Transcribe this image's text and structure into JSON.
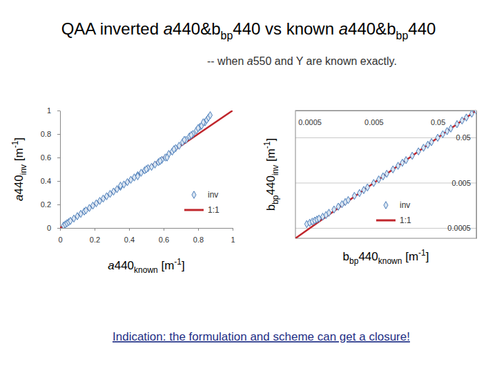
{
  "title": "QAA inverted a440&bbp440 vs known a440&bbp440",
  "subtitle": "-- when a550 and Y are known exactly.",
  "note": "Indication: the formulation and scheme can get a closure!",
  "chart_data": [
    {
      "type": "scatter",
      "x_label": "a440known [m-1]",
      "y_label": "a440inv [m-1]",
      "xlim": [
        0,
        1
      ],
      "ylim": [
        0,
        1
      ],
      "xticks": [
        0,
        0.2,
        0.4,
        0.6,
        0.8,
        1
      ],
      "yticks": [
        0,
        0.2,
        0.4,
        0.6,
        0.8,
        1
      ],
      "grid": false,
      "legend": "lower right",
      "series": [
        {
          "name": "inv",
          "type": "scatter",
          "marker": "diamond",
          "color": "#4a7ebb",
          "x": [
            0.02,
            0.03,
            0.04,
            0.05,
            0.06,
            0.08,
            0.1,
            0.12,
            0.14,
            0.15,
            0.17,
            0.19,
            0.21,
            0.23,
            0.25,
            0.27,
            0.29,
            0.31,
            0.33,
            0.35,
            0.37,
            0.39,
            0.41,
            0.43,
            0.45,
            0.47,
            0.49,
            0.51,
            0.53,
            0.55,
            0.57,
            0.59,
            0.61,
            0.63,
            0.65,
            0.67,
            0.69,
            0.71,
            0.73,
            0.75,
            0.77,
            0.79,
            0.81,
            0.82,
            0.84,
            0.85,
            0.86,
            0.87,
            0.58,
            0.62,
            0.66,
            0.72,
            0.76,
            0.8,
            0.83,
            0.35,
            0.45,
            0.5
          ],
          "values": [
            0.02,
            0.03,
            0.04,
            0.05,
            0.06,
            0.08,
            0.1,
            0.12,
            0.14,
            0.15,
            0.17,
            0.19,
            0.21,
            0.23,
            0.25,
            0.27,
            0.29,
            0.31,
            0.33,
            0.35,
            0.37,
            0.39,
            0.41,
            0.43,
            0.45,
            0.47,
            0.49,
            0.51,
            0.52,
            0.54,
            0.56,
            0.58,
            0.6,
            0.63,
            0.65,
            0.68,
            0.7,
            0.73,
            0.75,
            0.78,
            0.8,
            0.83,
            0.86,
            0.87,
            0.9,
            0.92,
            0.94,
            0.96,
            0.57,
            0.6,
            0.67,
            0.75,
            0.79,
            0.85,
            0.9,
            0.36,
            0.44,
            0.5
          ]
        },
        {
          "name": "1:1",
          "type": "line",
          "line_style": "solid",
          "color": "#c0262c",
          "x": [
            0,
            1
          ],
          "values": [
            0,
            1
          ]
        }
      ]
    },
    {
      "type": "scatter",
      "x_label": "bbp440known [m-1]",
      "y_label": "bbp440inv [m-1]",
      "log": true,
      "xlim": [
        0.0003,
        0.2
      ],
      "ylim": [
        0.0003,
        0.2
      ],
      "xticks": [
        0.0005,
        0.005,
        0.05
      ],
      "yticks": [
        0.0005,
        0.005,
        0.05
      ],
      "grid": true,
      "legend": "lower right",
      "series": [
        {
          "name": "inv",
          "type": "scatter",
          "marker": "diamond",
          "color": "#4a7ebb",
          "x": [
            0.00045,
            0.0005,
            0.00055,
            0.0006,
            0.00065,
            0.0007,
            0.0008,
            0.0009,
            0.001,
            0.0012,
            0.0014,
            0.0016,
            0.0018,
            0.002,
            0.0025,
            0.003,
            0.0035,
            0.004,
            0.005,
            0.006,
            0.007,
            0.008,
            0.01,
            0.012,
            0.014,
            0.016,
            0.02,
            0.025,
            0.03,
            0.035,
            0.04,
            0.05,
            0.06,
            0.07,
            0.08,
            0.1,
            0.12,
            0.14,
            0.17,
            0.2
          ],
          "values": [
            0.00062,
            0.00066,
            0.0007,
            0.00074,
            0.00078,
            0.00082,
            0.0009,
            0.00098,
            0.0011,
            0.0013,
            0.0015,
            0.0017,
            0.0019,
            0.0021,
            0.0026,
            0.003,
            0.0035,
            0.004,
            0.005,
            0.006,
            0.007,
            0.008,
            0.01,
            0.012,
            0.014,
            0.016,
            0.02,
            0.025,
            0.03,
            0.035,
            0.04,
            0.05,
            0.06,
            0.07,
            0.08,
            0.1,
            0.12,
            0.14,
            0.17,
            0.2
          ]
        },
        {
          "name": "1:1",
          "type": "line",
          "line_style": "solid",
          "color": "#c0262c",
          "x": [
            0.0003,
            0.2
          ],
          "values": [
            0.0003,
            0.2
          ]
        }
      ]
    }
  ]
}
